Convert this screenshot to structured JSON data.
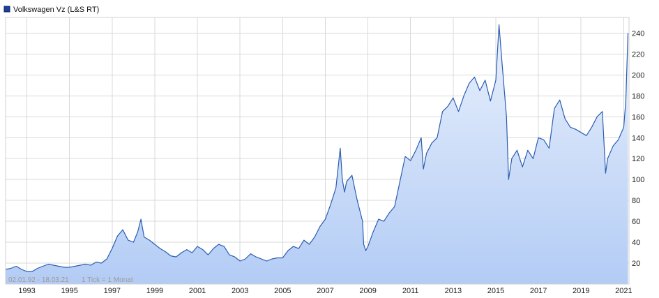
{
  "legend": {
    "label": "Volkswagen Vz (L&S RT)",
    "color": "#1f3f99"
  },
  "info": {
    "range": "02.01.92 - 18.03.21",
    "tick": "1 Tick = 1 Monat"
  },
  "colors": {
    "line": "#2a5db0",
    "fill_top": "#e9f0fc",
    "fill_bottom": "#b3ccf5",
    "grid": "#d9d9d9"
  },
  "chart_data": {
    "type": "area",
    "title": "",
    "xlabel": "",
    "ylabel": "",
    "grid": true,
    "legend_position": "top-left",
    "y_axis_side": "right",
    "xlim": [
      1992.0,
      2021.25
    ],
    "ylim": [
      0,
      255
    ],
    "x_ticks": [
      1993,
      1995,
      1997,
      1999,
      2001,
      2003,
      2005,
      2007,
      2009,
      2011,
      2013,
      2015,
      2017,
      2019,
      2021
    ],
    "x_tick_labels": [
      "1993",
      "1995",
      "1997",
      "1999",
      "2001",
      "2003",
      "2005",
      "2007",
      "2009",
      "2011",
      "2013",
      "2015",
      "2017",
      "2019",
      "2021"
    ],
    "y_ticks": [
      20,
      40,
      60,
      80,
      100,
      120,
      140,
      160,
      180,
      200,
      220,
      240
    ],
    "y_tick_labels": [
      "20",
      "40",
      "60",
      "80",
      "100",
      "120",
      "140",
      "160",
      "180",
      "200",
      "220",
      "240"
    ],
    "series": [
      {
        "name": "Volkswagen Vz (L&S RT)",
        "x": [
          1992.0,
          1992.25,
          1992.5,
          1992.75,
          1993.0,
          1993.25,
          1993.5,
          1993.75,
          1994.0,
          1994.25,
          1994.5,
          1994.75,
          1995.0,
          1995.25,
          1995.5,
          1995.75,
          1996.0,
          1996.25,
          1996.5,
          1996.75,
          1997.0,
          1997.25,
          1997.5,
          1997.75,
          1998.0,
          1998.2,
          1998.35,
          1998.5,
          1998.75,
          1999.0,
          1999.25,
          1999.5,
          1999.75,
          2000.0,
          2000.25,
          2000.5,
          2000.75,
          2001.0,
          2001.25,
          2001.5,
          2001.75,
          2002.0,
          2002.25,
          2002.5,
          2002.75,
          2003.0,
          2003.25,
          2003.5,
          2003.75,
          2004.0,
          2004.25,
          2004.5,
          2004.75,
          2005.0,
          2005.25,
          2005.5,
          2005.75,
          2006.0,
          2006.25,
          2006.5,
          2006.75,
          2007.0,
          2007.25,
          2007.5,
          2007.7,
          2007.8,
          2007.9,
          2008.0,
          2008.25,
          2008.5,
          2008.75,
          2008.8,
          2008.9,
          2009.0,
          2009.25,
          2009.5,
          2009.75,
          2010.0,
          2010.25,
          2010.5,
          2010.75,
          2011.0,
          2011.25,
          2011.5,
          2011.6,
          2011.75,
          2012.0,
          2012.25,
          2012.5,
          2012.75,
          2013.0,
          2013.25,
          2013.5,
          2013.75,
          2014.0,
          2014.25,
          2014.5,
          2014.75,
          2015.0,
          2015.15,
          2015.3,
          2015.5,
          2015.6,
          2015.75,
          2016.0,
          2016.25,
          2016.5,
          2016.75,
          2017.0,
          2017.25,
          2017.5,
          2017.75,
          2018.0,
          2018.25,
          2018.5,
          2018.75,
          2019.0,
          2019.25,
          2019.5,
          2019.75,
          2020.0,
          2020.15,
          2020.25,
          2020.5,
          2020.75,
          2021.0,
          2021.1,
          2021.2
        ],
        "values": [
          14,
          15,
          17,
          14,
          12,
          12,
          15,
          17,
          19,
          18,
          17,
          16,
          16,
          17,
          18,
          19,
          18,
          21,
          20,
          24,
          34,
          46,
          52,
          42,
          40,
          50,
          62,
          45,
          42,
          38,
          34,
          31,
          27,
          26,
          30,
          33,
          30,
          36,
          33,
          28,
          34,
          38,
          36,
          28,
          26,
          22,
          24,
          29,
          26,
          24,
          22,
          24,
          25,
          25,
          32,
          36,
          34,
          42,
          38,
          45,
          55,
          62,
          76,
          92,
          130,
          100,
          88,
          98,
          104,
          80,
          60,
          38,
          32,
          36,
          50,
          62,
          60,
          68,
          74,
          98,
          122,
          118,
          128,
          140,
          110,
          125,
          135,
          140,
          165,
          170,
          178,
          165,
          180,
          192,
          198,
          185,
          195,
          175,
          195,
          248,
          210,
          160,
          100,
          120,
          128,
          112,
          128,
          120,
          140,
          138,
          130,
          168,
          176,
          158,
          150,
          148,
          145,
          142,
          150,
          160,
          165,
          106,
          120,
          132,
          138,
          150,
          175,
          240
        ]
      }
    ]
  }
}
